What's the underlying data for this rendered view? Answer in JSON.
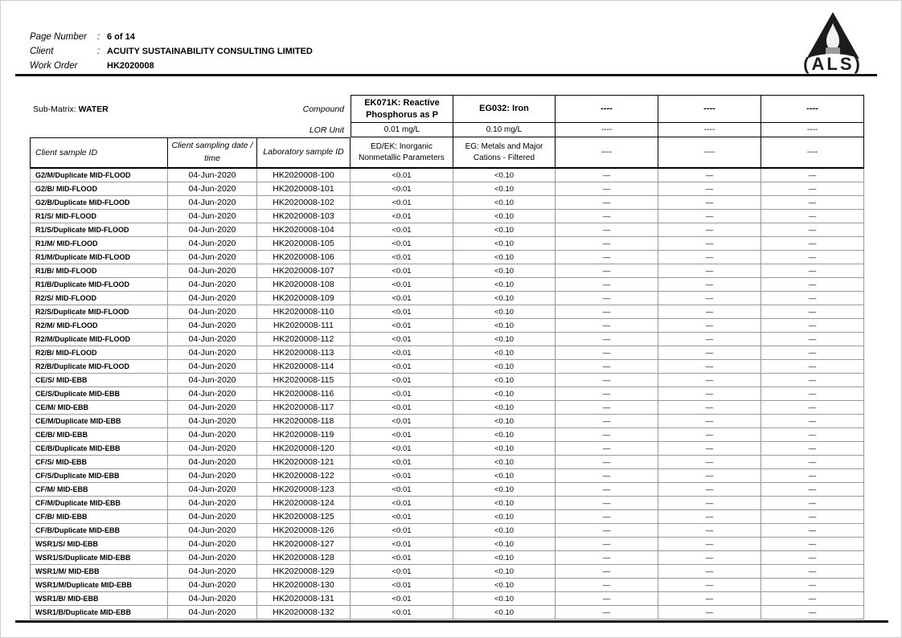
{
  "page_header": {
    "fields": [
      {
        "label": "Page Number",
        "separator": ":",
        "value": "6 of 14"
      },
      {
        "label": "Client",
        "separator": ":",
        "value": "ACUITY SUSTAINABILITY CONSULTING LIMITED"
      },
      {
        "label": "Work Order",
        "separator": "",
        "value": "HK2020008"
      }
    ],
    "logo_text": "ALS"
  },
  "table": {
    "sub_matrix_label": "Sub-Matrix:",
    "sub_matrix_value": "WATER",
    "compound_label": "Compound",
    "lor_unit_label": "LOR Unit",
    "id_headers": {
      "client_sample_id": "Client sample ID",
      "client_sampling_date": "Client sampling date / time",
      "laboratory_sample_id": "Laboratory sample ID"
    },
    "analyte_columns": [
      {
        "compound": "EK071K: Reactive Phosphorus as P",
        "lor_unit": "0.01 mg/L",
        "method_group": "ED/EK: Inorganic Nonmetallic Parameters"
      },
      {
        "compound": "EG032: Iron",
        "lor_unit": "0.10 mg/L",
        "method_group": "EG: Metals and Major Cations - Filtered"
      },
      {
        "compound": "----",
        "lor_unit": "----",
        "method_group": "----"
      },
      {
        "compound": "----",
        "lor_unit": "----",
        "method_group": "----"
      },
      {
        "compound": "----",
        "lor_unit": "----",
        "method_group": "----"
      }
    ],
    "rows": [
      {
        "client_sample_id": "G2/M/Duplicate MID-FLOOD",
        "date": "04-Jun-2020",
        "lab_id": "HK2020008-100",
        "values": [
          "<0.01",
          "<0.10",
          "—",
          "—",
          "—"
        ]
      },
      {
        "client_sample_id": "G2/B/ MID-FLOOD",
        "date": "04-Jun-2020",
        "lab_id": "HK2020008-101",
        "values": [
          "<0.01",
          "<0.10",
          "—",
          "—",
          "—"
        ]
      },
      {
        "client_sample_id": "G2/B/Duplicate MID-FLOOD",
        "date": "04-Jun-2020",
        "lab_id": "HK2020008-102",
        "values": [
          "<0.01",
          "<0.10",
          "—",
          "—",
          "—"
        ]
      },
      {
        "client_sample_id": "R1/S/ MID-FLOOD",
        "date": "04-Jun-2020",
        "lab_id": "HK2020008-103",
        "values": [
          "<0.01",
          "<0.10",
          "—",
          "—",
          "—"
        ]
      },
      {
        "client_sample_id": "R1/S/Duplicate MID-FLOOD",
        "date": "04-Jun-2020",
        "lab_id": "HK2020008-104",
        "values": [
          "<0.01",
          "<0.10",
          "—",
          "—",
          "—"
        ]
      },
      {
        "client_sample_id": "R1/M/ MID-FLOOD",
        "date": "04-Jun-2020",
        "lab_id": "HK2020008-105",
        "values": [
          "<0.01",
          "<0.10",
          "—",
          "—",
          "—"
        ]
      },
      {
        "client_sample_id": "R1/M/Duplicate MID-FLOOD",
        "date": "04-Jun-2020",
        "lab_id": "HK2020008-106",
        "values": [
          "<0.01",
          "<0.10",
          "—",
          "—",
          "—"
        ]
      },
      {
        "client_sample_id": "R1/B/ MID-FLOOD",
        "date": "04-Jun-2020",
        "lab_id": "HK2020008-107",
        "values": [
          "<0.01",
          "<0.10",
          "—",
          "—",
          "—"
        ]
      },
      {
        "client_sample_id": "R1/B/Duplicate MID-FLOOD",
        "date": "04-Jun-2020",
        "lab_id": "HK2020008-108",
        "values": [
          "<0.01",
          "<0.10",
          "—",
          "—",
          "—"
        ]
      },
      {
        "client_sample_id": "R2/S/ MID-FLOOD",
        "date": "04-Jun-2020",
        "lab_id": "HK2020008-109",
        "values": [
          "<0.01",
          "<0.10",
          "—",
          "—",
          "—"
        ]
      },
      {
        "client_sample_id": "R2/S/Duplicate MID-FLOOD",
        "date": "04-Jun-2020",
        "lab_id": "HK2020008-110",
        "values": [
          "<0.01",
          "<0.10",
          "—",
          "—",
          "—"
        ]
      },
      {
        "client_sample_id": "R2/M/ MID-FLOOD",
        "date": "04-Jun-2020",
        "lab_id": "HK2020008-111",
        "values": [
          "<0.01",
          "<0.10",
          "—",
          "—",
          "—"
        ]
      },
      {
        "client_sample_id": "R2/M/Duplicate MID-FLOOD",
        "date": "04-Jun-2020",
        "lab_id": "HK2020008-112",
        "values": [
          "<0.01",
          "<0.10",
          "—",
          "—",
          "—"
        ]
      },
      {
        "client_sample_id": "R2/B/ MID-FLOOD",
        "date": "04-Jun-2020",
        "lab_id": "HK2020008-113",
        "values": [
          "<0.01",
          "<0.10",
          "—",
          "—",
          "—"
        ]
      },
      {
        "client_sample_id": "R2/B/Duplicate MID-FLOOD",
        "date": "04-Jun-2020",
        "lab_id": "HK2020008-114",
        "values": [
          "<0.01",
          "<0.10",
          "—",
          "—",
          "—"
        ]
      },
      {
        "client_sample_id": "CE/S/ MID-EBB",
        "date": "04-Jun-2020",
        "lab_id": "HK2020008-115",
        "values": [
          "<0.01",
          "<0.10",
          "—",
          "—",
          "—"
        ]
      },
      {
        "client_sample_id": "CE/S/Duplicate MID-EBB",
        "date": "04-Jun-2020",
        "lab_id": "HK2020008-116",
        "values": [
          "<0.01",
          "<0.10",
          "—",
          "—",
          "—"
        ]
      },
      {
        "client_sample_id": "CE/M/ MID-EBB",
        "date": "04-Jun-2020",
        "lab_id": "HK2020008-117",
        "values": [
          "<0.01",
          "<0.10",
          "—",
          "—",
          "—"
        ]
      },
      {
        "client_sample_id": "CE/M/Duplicate MID-EBB",
        "date": "04-Jun-2020",
        "lab_id": "HK2020008-118",
        "values": [
          "<0.01",
          "<0.10",
          "—",
          "—",
          "—"
        ]
      },
      {
        "client_sample_id": "CE/B/ MID-EBB",
        "date": "04-Jun-2020",
        "lab_id": "HK2020008-119",
        "values": [
          "<0.01",
          "<0.10",
          "—",
          "—",
          "—"
        ]
      },
      {
        "client_sample_id": "CE/B/Duplicate MID-EBB",
        "date": "04-Jun-2020",
        "lab_id": "HK2020008-120",
        "values": [
          "<0.01",
          "<0.10",
          "—",
          "—",
          "—"
        ]
      },
      {
        "client_sample_id": "CF/S/ MID-EBB",
        "date": "04-Jun-2020",
        "lab_id": "HK2020008-121",
        "values": [
          "<0.01",
          "<0.10",
          "—",
          "—",
          "—"
        ]
      },
      {
        "client_sample_id": "CF/S/Duplicate MID-EBB",
        "date": "04-Jun-2020",
        "lab_id": "HK2020008-122",
        "values": [
          "<0.01",
          "<0.10",
          "—",
          "—",
          "—"
        ]
      },
      {
        "client_sample_id": "CF/M/ MID-EBB",
        "date": "04-Jun-2020",
        "lab_id": "HK2020008-123",
        "values": [
          "<0.01",
          "<0.10",
          "—",
          "—",
          "—"
        ]
      },
      {
        "client_sample_id": "CF/M/Duplicate MID-EBB",
        "date": "04-Jun-2020",
        "lab_id": "HK2020008-124",
        "values": [
          "<0.01",
          "<0.10",
          "—",
          "—",
          "—"
        ]
      },
      {
        "client_sample_id": "CF/B/ MID-EBB",
        "date": "04-Jun-2020",
        "lab_id": "HK2020008-125",
        "values": [
          "<0.01",
          "<0.10",
          "—",
          "—",
          "—"
        ]
      },
      {
        "client_sample_id": "CF/B/Duplicate MID-EBB",
        "date": "04-Jun-2020",
        "lab_id": "HK2020008-126",
        "values": [
          "<0.01",
          "<0.10",
          "—",
          "—",
          "—"
        ]
      },
      {
        "client_sample_id": "WSR1/S/ MID-EBB",
        "date": "04-Jun-2020",
        "lab_id": "HK2020008-127",
        "values": [
          "<0.01",
          "<0.10",
          "—",
          "—",
          "—"
        ]
      },
      {
        "client_sample_id": "WSR1/S/Duplicate MID-EBB",
        "date": "04-Jun-2020",
        "lab_id": "HK2020008-128",
        "values": [
          "<0.01",
          "<0.10",
          "—",
          "—",
          "—"
        ]
      },
      {
        "client_sample_id": "WSR1/M/ MID-EBB",
        "date": "04-Jun-2020",
        "lab_id": "HK2020008-129",
        "values": [
          "<0.01",
          "<0.10",
          "—",
          "—",
          "—"
        ]
      },
      {
        "client_sample_id": "WSR1/M/Duplicate MID-EBB",
        "date": "04-Jun-2020",
        "lab_id": "HK2020008-130",
        "values": [
          "<0.01",
          "<0.10",
          "—",
          "—",
          "—"
        ]
      },
      {
        "client_sample_id": "WSR1/B/ MID-EBB",
        "date": "04-Jun-2020",
        "lab_id": "HK2020008-131",
        "values": [
          "<0.01",
          "<0.10",
          "—",
          "—",
          "—"
        ]
      },
      {
        "client_sample_id": "WSR1/B/Duplicate MID-EBB",
        "date": "04-Jun-2020",
        "lab_id": "HK2020008-132",
        "values": [
          "<0.01",
          "<0.10",
          "—",
          "—",
          "—"
        ]
      }
    ]
  }
}
